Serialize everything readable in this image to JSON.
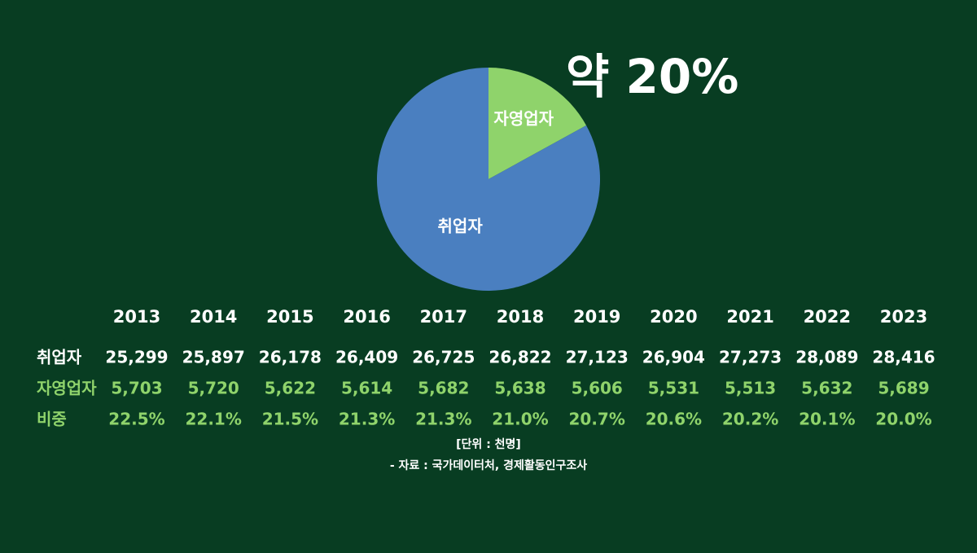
{
  "chart_data": {
    "type": "pie",
    "categories": [
      "자영업자",
      "취업자"
    ],
    "values": [
      17,
      83
    ],
    "colors": [
      "#8fd36b",
      "#4a7fc0"
    ],
    "annotation": "약 20%"
  },
  "table": {
    "columns": [
      "2013",
      "2014",
      "2015",
      "2016",
      "2017",
      "2018",
      "2019",
      "2020",
      "2021",
      "2022",
      "2023"
    ],
    "rows": [
      {
        "label": "취업자",
        "cells": [
          "25,299",
          "25,897",
          "26,178",
          "26,409",
          "26,725",
          "26,822",
          "27,123",
          "26,904",
          "27,273",
          "28,089",
          "28,416"
        ]
      },
      {
        "label": "자영업자",
        "cells": [
          "5,703",
          "5,720",
          "5,622",
          "5,614",
          "5,682",
          "5,638",
          "5,606",
          "5,531",
          "5,513",
          "5,632",
          "5,689"
        ]
      },
      {
        "label": "비중",
        "cells": [
          "22.5%",
          "22.1%",
          "21.5%",
          "21.3%",
          "21.3%",
          "21.0%",
          "20.7%",
          "20.6%",
          "20.2%",
          "20.1%",
          "20.0%"
        ]
      }
    ]
  },
  "notes": {
    "unit": "[단위 : 천명]",
    "source": "- 자료 : 국가데이터처, 경제활동인구조사"
  }
}
